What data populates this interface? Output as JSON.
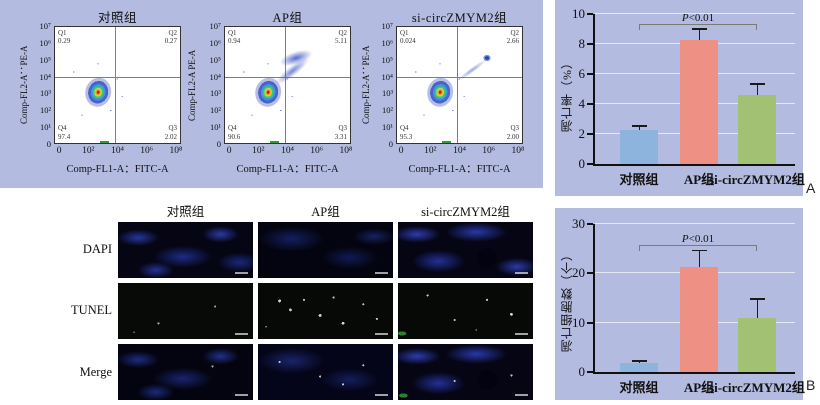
{
  "colors": {
    "panel_bg": "#b3bbe0",
    "bar_blue": "#8db4dd",
    "bar_salmon": "#ee9184",
    "bar_green": "#a2c172"
  },
  "flow": {
    "yticks": [
      "10⁷",
      "10⁶",
      "10⁵",
      "10⁴",
      "10³",
      "10²",
      "10¹",
      "0"
    ],
    "xticks": [
      "0",
      "10²",
      "10⁴",
      "10⁶",
      "10⁸"
    ],
    "xlabel": "Comp-FL1-A：FITC-A",
    "plots": [
      {
        "title": "对照组",
        "ylabel": "Comp-FL2-A：PE-A",
        "q1_label": "Q1",
        "q1": "0.29",
        "q2_label": "Q2",
        "q2": "0.27",
        "q3_label": "Q3",
        "q3": "2.02",
        "q4_label": "Q4",
        "q4": "97.4"
      },
      {
        "title": "AP组",
        "ylabel": "Comp-FL2-A PE-A",
        "q1_label": "Q1",
        "q1": "0.94",
        "q2_label": "Q2",
        "q2": "5.11",
        "q3_label": "Q3",
        "q3": "3.31",
        "q4_label": "Q4",
        "q4": "90.6"
      },
      {
        "title": "si-circZMYM2组",
        "ylabel": "Comp-FL2-A：PE-A",
        "q1_label": "Q1",
        "q1": "0.024",
        "q2_label": "Q2",
        "q2": "2.66",
        "q3_label": "Q3",
        "q3": "2.00",
        "q4_label": "Q4",
        "q4": "95.3"
      }
    ]
  },
  "microscopy": {
    "columns": [
      "对照组",
      "AP组",
      "si-circZMYM2组"
    ],
    "rows": [
      "DAPI",
      "TUNEL",
      "Merge"
    ]
  },
  "annotation": {
    "p_italic": "P",
    "p_rest": "<0.01"
  },
  "panel_labels": {
    "a": "A",
    "b": "B"
  },
  "chart_data": [
    {
      "type": "bar",
      "categories": [
        "对照组",
        "AP组",
        "si-circZMYM2组"
      ],
      "values": [
        2.3,
        8.3,
        4.6
      ],
      "errors": [
        0.25,
        0.7,
        0.75
      ],
      "title": "",
      "xlabel": "",
      "ylabel": "凋亡率（%）",
      "ylim": [
        0,
        10
      ],
      "yticks": [
        0,
        2,
        4,
        6,
        8,
        10
      ],
      "annotation": "P<0.01",
      "annotation_span": [
        "对照组",
        "si-circZMYM2组"
      ],
      "grid": true,
      "legend": false,
      "bar_colors": [
        "#8db4dd",
        "#ee9184",
        "#a2c172"
      ],
      "panel_label": "A"
    },
    {
      "type": "bar",
      "categories": [
        "对照组",
        "AP组",
        "si-circZMYM2组"
      ],
      "values": [
        1.8,
        21.3,
        11.0
      ],
      "errors": [
        0.4,
        3.3,
        3.8
      ],
      "title": "",
      "xlabel": "",
      "ylabel": "凋亡细胞数（个）",
      "ylim": [
        0,
        30
      ],
      "yticks": [
        0,
        10,
        20,
        30
      ],
      "annotation": "P<0.01",
      "annotation_span": [
        "对照组",
        "si-circZMYM2组"
      ],
      "grid": true,
      "legend": false,
      "bar_colors": [
        "#8db4dd",
        "#ee9184",
        "#a2c172"
      ],
      "panel_label": "B"
    }
  ]
}
